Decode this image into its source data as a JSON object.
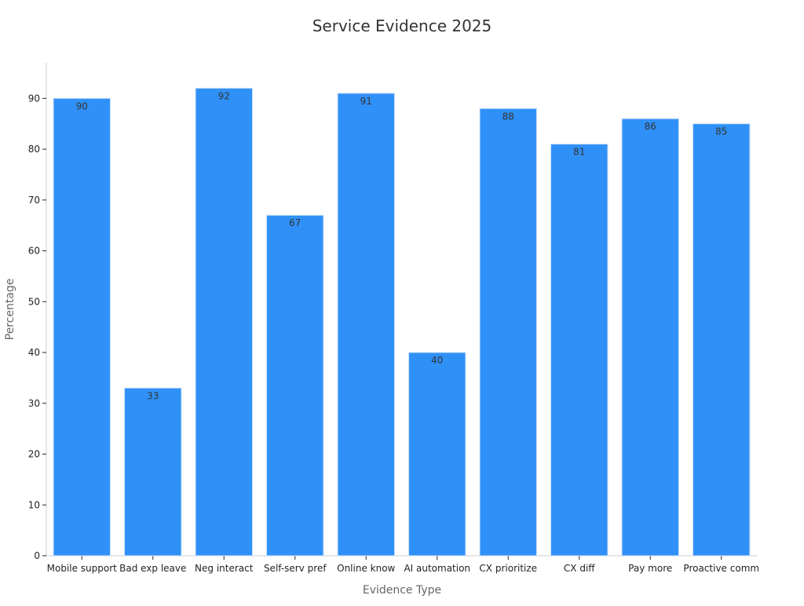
{
  "chart_data": {
    "type": "bar",
    "title": "Service Evidence 2025",
    "xlabel": "Evidence Type",
    "ylabel": "Percentage",
    "categories": [
      "Mobile support",
      "Bad exp leave",
      "Neg interact",
      "Self-serv pref",
      "Online know",
      "AI automation",
      "CX prioritize",
      "CX diff",
      "Pay more",
      "Proactive comm"
    ],
    "values": [
      90,
      33,
      92,
      67,
      91,
      40,
      88,
      81,
      86,
      85
    ],
    "yticks": [
      "0",
      "10",
      "20",
      "30",
      "40",
      "50",
      "60",
      "70",
      "80",
      "90"
    ],
    "ylim": [
      0,
      97
    ],
    "grid": false,
    "legend": "none",
    "colors": {
      "bar": "#2f91f8",
      "bar_edge": "#c8ddf7",
      "axis": "#cccccc",
      "title": "#333333",
      "axis_label": "#666666",
      "tick": "#222222",
      "data_label": "#333333"
    }
  }
}
